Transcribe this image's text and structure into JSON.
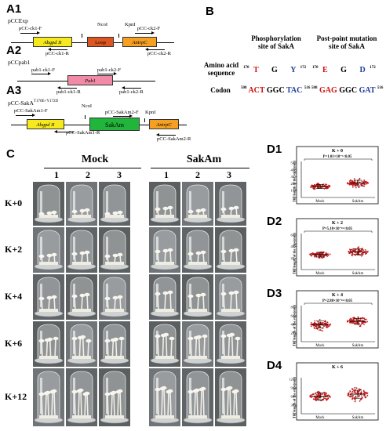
{
  "panelA": {
    "labels": [
      "A1",
      "A2",
      "A3"
    ],
    "a1": {
      "title": "pCCExp",
      "genes": {
        "abgpd": "Abgpd II",
        "loop": "Loop",
        "trpc": "AntrpC"
      },
      "sites": {
        "nco": "NcoI",
        "kpn": "KpnI"
      },
      "primers": {
        "ck1f": "pCC-ck1-F",
        "ck2f": "pCC-ck2-F",
        "ck1r": "pCC-ck1-R",
        "ck2r": "pCC-ck2-R"
      }
    },
    "a2": {
      "title": "pCCpab1",
      "gene": "Pab1",
      "primers": {
        "ck1f": "pab1-ck1-F",
        "ck2f": "pab1-ck2-F",
        "ck1r": "pab1-ck1-R",
        "ck2r": "pab1-ck2-R"
      }
    },
    "a3": {
      "title_main": "pCC-SakA",
      "title_sup": "T170E+Y172D",
      "genes": {
        "abgpd": "Abgpd II",
        "sakam": "SakAm",
        "trpc": "AntrpC"
      },
      "sites": {
        "nco": "NcoI",
        "kpn": "KpnI"
      },
      "primers": {
        "am1f": "pCC-SakAm1-F",
        "am2f": "pCC-SakAm2-F",
        "am1r": "pCC-SakAm1-R",
        "am2r": "pCC-SakAm2-R"
      }
    }
  },
  "panelB": {
    "label": "B",
    "hdr_phos": [
      "Phosphorylation",
      "site of SakA"
    ],
    "hdr_mut": [
      "Post-point mutation",
      "site of SakA"
    ],
    "row_aa": [
      "Amino acid",
      "sequence"
    ],
    "row_codon": "Codon",
    "phos_aa": {
      "start": "170",
      "a": "T",
      "b": "G",
      "c": "Y",
      "end": "172"
    },
    "mut_aa": {
      "start": "170",
      "a": "E",
      "b": "G",
      "c": "D",
      "end": "172"
    },
    "phos_codon": {
      "start": "508",
      "a": "ACT",
      "b": "GGC",
      "c": "TAC",
      "end": "516"
    },
    "mut_codon": {
      "start": "508",
      "a": "GAG",
      "b": "GGC",
      "c": "GAT",
      "end": "516"
    }
  },
  "panelC": {
    "label": "C",
    "group_mock": "Mock",
    "group_sakam": "SakAm",
    "reps": [
      "1",
      "2",
      "3",
      "1",
      "2",
      "3"
    ],
    "rows": [
      "K+0",
      "K+2",
      "K+4",
      "K+6",
      "K+12"
    ]
  },
  "panelD": {
    "ylabel": "The length of the stipe(mm)",
    "xcats": [
      "Mock",
      "SakAm"
    ],
    "colors": {
      "mock": "#c21a1a",
      "sakam": "#c21a1a",
      "bar": "#000000"
    },
    "plots": [
      {
        "label": "D1",
        "title": "K + 0",
        "pval": "P=1.01×10⁻⁵<0.05",
        "ymax": 50,
        "ticks": [
          "0",
          "10",
          "20",
          "30",
          "40",
          "50"
        ],
        "mock_mean": 16,
        "sakam_mean": 21,
        "mock_sd": 3,
        "sakam_sd": 4
      },
      {
        "label": "D2",
        "title": "K + 2",
        "pval": "P=5.10×10⁻¹⁶<0.05",
        "ymax": 60,
        "ticks": [
          "0",
          "20",
          "40",
          "60"
        ],
        "mock_mean": 26,
        "sakam_mean": 31,
        "mock_sd": 4,
        "sakam_sd": 5
      },
      {
        "label": "D3",
        "title": "K + 4",
        "pval": "P=2.88×10⁻¹⁶<0.05",
        "ymax": 80,
        "ticks": [
          "0",
          "20",
          "40",
          "60",
          "80"
        ],
        "mock_mean": 40,
        "sakam_mean": 47,
        "mock_sd": 8,
        "sakam_sd": 7
      },
      {
        "label": "D4",
        "title": "K + 6",
        "pval": "",
        "ymax": 120,
        "ticks": [
          "0",
          "30",
          "60",
          "90",
          "120"
        ],
        "mock_mean": 60,
        "sakam_mean": 68,
        "mock_sd": 12,
        "sakam_sd": 14
      }
    ]
  }
}
